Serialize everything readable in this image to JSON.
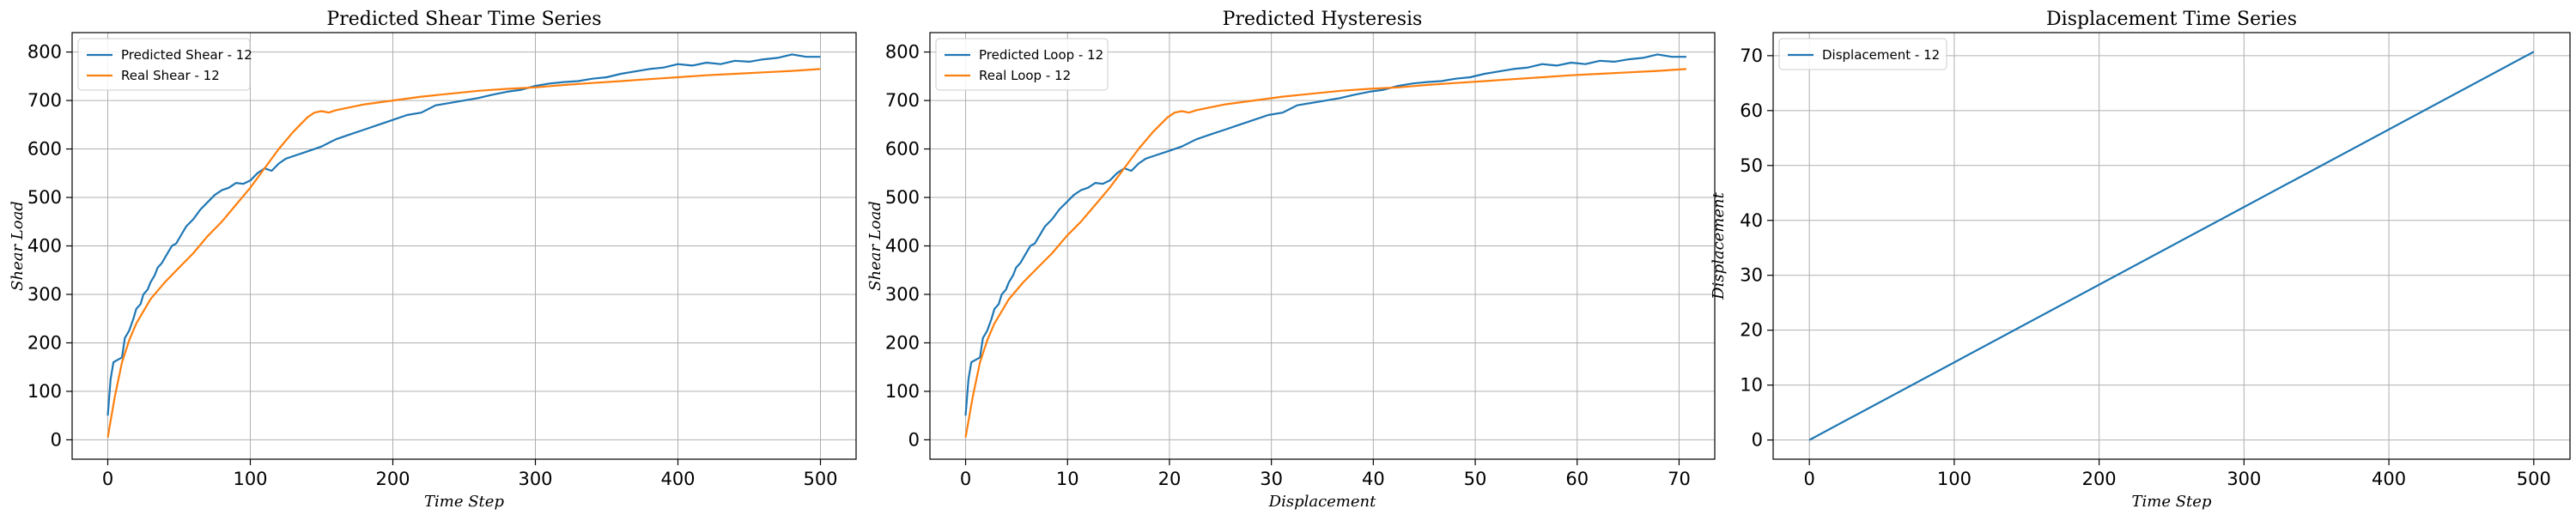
{
  "chart_data": [
    {
      "type": "line",
      "title": "Predicted Shear Time Series",
      "xlabel": "Time Step",
      "ylabel": "Shear Load",
      "xlim": [
        -25,
        525
      ],
      "ylim": [
        -40,
        840
      ],
      "xticks": [
        0,
        100,
        200,
        300,
        400,
        500
      ],
      "yticks": [
        0,
        100,
        200,
        300,
        400,
        500,
        600,
        700,
        800
      ],
      "grid": true,
      "legend_position": "top-left",
      "series": [
        {
          "name": "Predicted Shear - 12",
          "color": "#1f77b4",
          "x": [
            0,
            2,
            4,
            7,
            10,
            12,
            15,
            18,
            20,
            23,
            25,
            28,
            30,
            33,
            35,
            38,
            40,
            43,
            45,
            48,
            50,
            55,
            60,
            65,
            70,
            75,
            80,
            85,
            90,
            95,
            100,
            105,
            110,
            115,
            120,
            125,
            130,
            140,
            150,
            160,
            170,
            180,
            190,
            200,
            210,
            220,
            230,
            240,
            250,
            260,
            270,
            280,
            290,
            300,
            310,
            320,
            330,
            340,
            350,
            360,
            370,
            380,
            390,
            400,
            410,
            420,
            430,
            440,
            450,
            460,
            470,
            480,
            490,
            500
          ],
          "y": [
            50,
            125,
            160,
            165,
            170,
            210,
            225,
            250,
            270,
            280,
            300,
            310,
            325,
            340,
            355,
            365,
            375,
            390,
            400,
            405,
            415,
            440,
            455,
            475,
            490,
            505,
            515,
            520,
            530,
            528,
            535,
            550,
            560,
            555,
            570,
            580,
            585,
            595,
            605,
            620,
            630,
            640,
            650,
            660,
            670,
            675,
            690,
            695,
            700,
            705,
            712,
            718,
            722,
            730,
            735,
            738,
            740,
            745,
            748,
            755,
            760,
            765,
            768,
            775,
            772,
            778,
            775,
            782,
            780,
            785,
            788,
            795,
            790,
            790
          ]
        },
        {
          "name": "Real Shear - 12",
          "color": "#ff7f0e",
          "x": [
            0,
            5,
            10,
            15,
            20,
            25,
            30,
            40,
            50,
            60,
            70,
            80,
            90,
            100,
            110,
            120,
            130,
            140,
            145,
            150,
            155,
            160,
            180,
            200,
            220,
            240,
            260,
            280,
            300,
            320,
            340,
            360,
            380,
            400,
            420,
            440,
            460,
            480,
            500
          ],
          "y": [
            5,
            90,
            160,
            205,
            240,
            265,
            290,
            325,
            355,
            385,
            420,
            450,
            485,
            520,
            560,
            600,
            635,
            665,
            675,
            678,
            675,
            680,
            692,
            700,
            708,
            714,
            720,
            724,
            727,
            732,
            736,
            740,
            744,
            748,
            752,
            755,
            758,
            761,
            765
          ]
        }
      ]
    },
    {
      "type": "line",
      "title": "Predicted Hysteresis",
      "xlabel": "Displacement",
      "ylabel": "Shear Load",
      "xlim": [
        -3.5,
        73.5
      ],
      "ylim": [
        -40,
        840
      ],
      "xticks": [
        0,
        10,
        20,
        30,
        40,
        50,
        60,
        70
      ],
      "yticks": [
        0,
        100,
        200,
        300,
        400,
        500,
        600,
        700,
        800
      ],
      "grid": true,
      "legend_position": "top-left",
      "series": [
        {
          "name": "Predicted Loop - 12",
          "color": "#1f77b4",
          "x": [
            0,
            0.28,
            0.56,
            0.99,
            1.41,
            1.7,
            2.12,
            2.55,
            2.83,
            3.25,
            3.54,
            3.96,
            4.24,
            4.67,
            4.95,
            5.38,
            5.66,
            6.08,
            6.36,
            6.79,
            7.07,
            7.78,
            8.49,
            9.19,
            9.9,
            10.61,
            11.31,
            12.02,
            12.73,
            13.44,
            14.14,
            14.85,
            15.56,
            16.26,
            16.97,
            17.68,
            18.38,
            19.8,
            21.21,
            22.63,
            24.04,
            25.46,
            26.87,
            28.28,
            29.7,
            31.11,
            32.53,
            33.94,
            35.36,
            36.77,
            38.18,
            39.6,
            41.01,
            42.43,
            43.84,
            45.25,
            46.67,
            48.08,
            49.5,
            50.91,
            52.33,
            53.74,
            55.15,
            56.57,
            57.98,
            59.4,
            60.81,
            62.23,
            63.64,
            65.05,
            66.47,
            67.88,
            69.3,
            70.71
          ],
          "y": [
            50,
            125,
            160,
            165,
            170,
            210,
            225,
            250,
            270,
            280,
            300,
            310,
            325,
            340,
            355,
            365,
            375,
            390,
            400,
            405,
            415,
            440,
            455,
            475,
            490,
            505,
            515,
            520,
            530,
            528,
            535,
            550,
            560,
            555,
            570,
            580,
            585,
            595,
            605,
            620,
            630,
            640,
            650,
            660,
            670,
            675,
            690,
            695,
            700,
            705,
            712,
            718,
            722,
            730,
            735,
            738,
            740,
            745,
            748,
            755,
            760,
            765,
            768,
            775,
            772,
            778,
            775,
            782,
            780,
            785,
            788,
            795,
            790,
            790
          ]
        },
        {
          "name": "Real Loop - 12",
          "color": "#ff7f0e",
          "x": [
            0,
            0.71,
            1.41,
            2.12,
            2.83,
            3.54,
            4.24,
            5.66,
            7.07,
            8.49,
            9.9,
            11.31,
            12.73,
            14.14,
            15.56,
            16.97,
            18.38,
            19.8,
            20.51,
            21.21,
            21.92,
            22.63,
            25.46,
            28.28,
            31.11,
            33.94,
            36.77,
            39.6,
            42.43,
            45.25,
            48.08,
            50.91,
            53.74,
            56.57,
            59.4,
            62.23,
            65.05,
            67.88,
            70.71
          ],
          "y": [
            5,
            90,
            160,
            205,
            240,
            265,
            290,
            325,
            355,
            385,
            420,
            450,
            485,
            520,
            560,
            600,
            635,
            665,
            675,
            678,
            675,
            680,
            692,
            700,
            708,
            714,
            720,
            724,
            727,
            732,
            736,
            740,
            744,
            748,
            752,
            755,
            758,
            761,
            765
          ]
        }
      ]
    },
    {
      "type": "line",
      "title": "Displacement Time Series",
      "xlabel": "Time Step",
      "ylabel": "Displacement",
      "xlim": [
        -25,
        525
      ],
      "ylim": [
        -3.5,
        74.2
      ],
      "xticks": [
        0,
        100,
        200,
        300,
        400,
        500
      ],
      "yticks": [
        0,
        10,
        20,
        30,
        40,
        50,
        60,
        70
      ],
      "grid": true,
      "legend_position": "top-left",
      "series": [
        {
          "name": "Displacement - 12",
          "color": "#1f77b4",
          "x": [
            0,
            500
          ],
          "y": [
            0,
            70.71
          ]
        }
      ]
    }
  ]
}
